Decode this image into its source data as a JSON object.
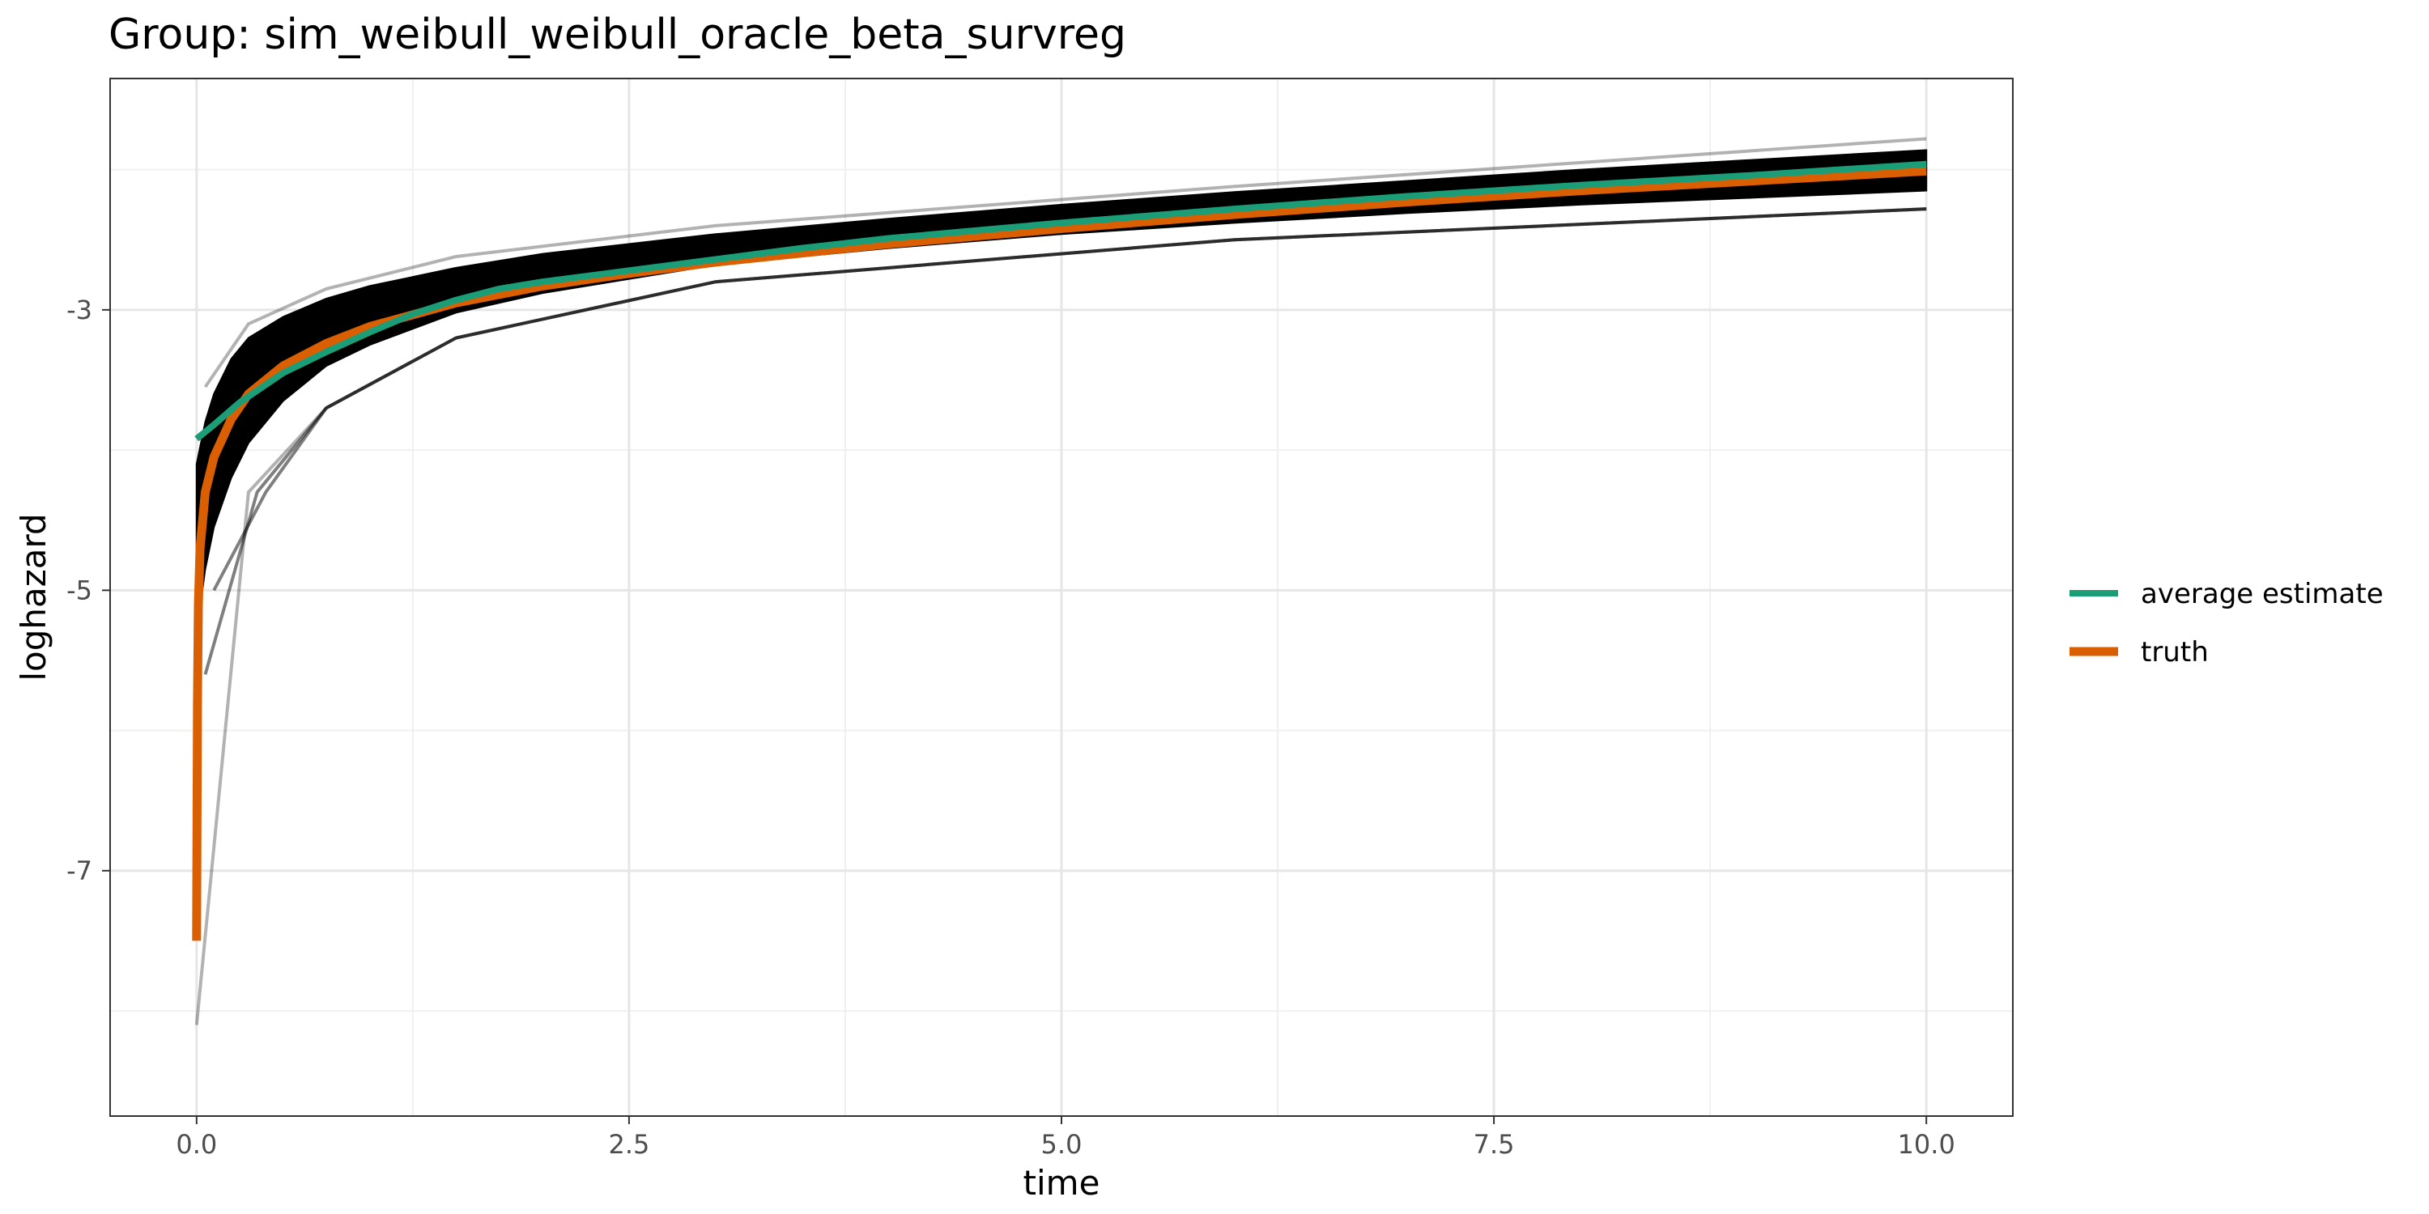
{
  "chart_data": {
    "type": "line",
    "title": "Group: sim_weibull_weibull_oracle_beta_survreg",
    "xlabel": "time",
    "ylabel": "loghazard",
    "xlim": [
      -0.5,
      10.5
    ],
    "ylim": [
      -8.75,
      -1.35
    ],
    "xticks": [
      0,
      2.5,
      5,
      7.5,
      10
    ],
    "xtick_labels": [
      "0.0",
      "2.5",
      "5.0",
      "7.5",
      "10.0"
    ],
    "yticks": [
      -7,
      -5,
      -3
    ],
    "ytick_labels": [
      "-7",
      "-5",
      "-3"
    ],
    "grid": true,
    "legend_position": "right",
    "simulation_band": {
      "description_visible": false,
      "color": "#000000",
      "x": [
        0.0,
        0.05,
        0.1,
        0.2,
        0.3,
        0.5,
        0.75,
        1.0,
        1.5,
        2.0,
        3.0,
        4.0,
        5.0,
        6.0,
        7.0,
        8.0,
        9.0,
        10.0
      ],
      "lower": [
        -5.3,
        -4.85,
        -4.55,
        -4.2,
        -3.95,
        -3.65,
        -3.4,
        -3.25,
        -3.02,
        -2.88,
        -2.68,
        -2.56,
        -2.46,
        -2.38,
        -2.31,
        -2.25,
        -2.2,
        -2.15
      ],
      "upper": [
        -4.1,
        -3.8,
        -3.6,
        -3.35,
        -3.2,
        -3.05,
        -2.92,
        -2.83,
        -2.7,
        -2.6,
        -2.46,
        -2.35,
        -2.25,
        -2.16,
        -2.08,
        -2.0,
        -1.93,
        -1.86
      ]
    },
    "series": [
      {
        "name": "average estimate",
        "color": "#1b9e77",
        "x": [
          0.0,
          0.1,
          0.25,
          0.5,
          0.75,
          1.0,
          1.25,
          1.5,
          1.75,
          2.0,
          2.5,
          3.0,
          3.5,
          4.0,
          5.0,
          6.0,
          7.0,
          8.0,
          9.0,
          10.0
        ],
        "y": [
          -3.92,
          -3.82,
          -3.66,
          -3.45,
          -3.3,
          -3.16,
          -3.03,
          -2.93,
          -2.85,
          -2.8,
          -2.72,
          -2.64,
          -2.56,
          -2.49,
          -2.38,
          -2.28,
          -2.19,
          -2.11,
          -2.04,
          -1.96
        ]
      },
      {
        "name": "truth",
        "color": "#d95f02",
        "x": [
          0.0,
          0.005,
          0.01,
          0.02,
          0.05,
          0.1,
          0.2,
          0.3,
          0.5,
          0.75,
          1.0,
          1.5,
          2.0,
          2.5,
          3.0,
          4.0,
          5.0,
          6.0,
          7.0,
          8.0,
          9.0,
          10.0
        ],
        "y": [
          -7.5,
          -5.8,
          -5.1,
          -4.7,
          -4.3,
          -4.05,
          -3.78,
          -3.6,
          -3.4,
          -3.24,
          -3.12,
          -2.95,
          -2.83,
          -2.74,
          -2.66,
          -2.53,
          -2.42,
          -2.32,
          -2.23,
          -2.15,
          -2.08,
          -2.01
        ]
      }
    ]
  }
}
